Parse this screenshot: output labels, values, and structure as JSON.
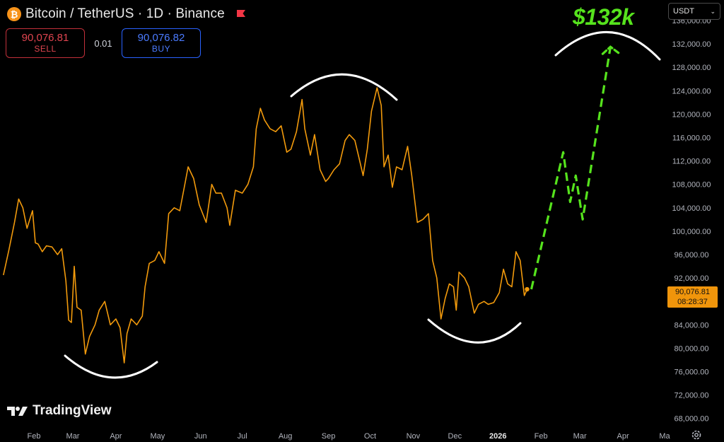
{
  "header": {
    "symbol_title": "Bitcoin / TetherUS · 1D · Binance",
    "icon": "bitcoin-icon",
    "flag_icon": "flag-icon",
    "flag_color": "#f23645"
  },
  "trade": {
    "sell_price": "90,076.81",
    "sell_label": "SELL",
    "spread": "0.01",
    "buy_price": "90,076.82",
    "buy_label": "BUY"
  },
  "currency": {
    "selected": "USDT"
  },
  "last_price": {
    "price": "90,076.81",
    "countdown": "08:28:37"
  },
  "annotation": {
    "target": "$132k"
  },
  "brand": {
    "name": "TradingView"
  },
  "colors": {
    "price_line": "#f29a0c",
    "projection": "#56e31d",
    "arcs": "#ffffff",
    "background": "#000000"
  },
  "chart_data": {
    "type": "line",
    "title": "Bitcoin / TetherUS · 1D · Binance",
    "xlabel": "",
    "ylabel": "",
    "ylim": [
      67000,
      139500
    ],
    "y_ticks": [
      68000,
      72000,
      76000,
      80000,
      84000,
      88000,
      92000,
      96000,
      100000,
      104000,
      108000,
      112000,
      116000,
      120000,
      124000,
      128000,
      132000,
      136000
    ],
    "y_tick_labels": [
      "68,000.00",
      "72,000.00",
      "76,000.00",
      "80,000.00",
      "84,000.00",
      "88,000.00",
      "92,000.00",
      "96,000.00",
      "100,000.00",
      "104,000.00",
      "108,000.00",
      "112,000.00",
      "116,000.00",
      "120,000.00",
      "124,000.00",
      "128,000.00",
      "132,000.00",
      "136,000.00"
    ],
    "x_tick_labels": [
      {
        "label": "Feb",
        "date": "2025-02-01"
      },
      {
        "label": "Mar",
        "date": "2025-03-01"
      },
      {
        "label": "Apr",
        "date": "2025-04-01"
      },
      {
        "label": "May",
        "date": "2025-05-01"
      },
      {
        "label": "Jun",
        "date": "2025-06-01"
      },
      {
        "label": "Jul",
        "date": "2025-07-01"
      },
      {
        "label": "Aug",
        "date": "2025-08-01"
      },
      {
        "label": "Sep",
        "date": "2025-09-01"
      },
      {
        "label": "Oct",
        "date": "2025-10-01"
      },
      {
        "label": "Nov",
        "date": "2025-11-01"
      },
      {
        "label": "Dec",
        "date": "2025-12-01"
      },
      {
        "label": "2026",
        "date": "2026-01-01"
      },
      {
        "label": "Feb",
        "date": "2026-02-01"
      },
      {
        "label": "Mar",
        "date": "2026-03-01"
      },
      {
        "label": "Apr",
        "date": "2026-04-01"
      },
      {
        "label": "Ma",
        "date": "2026-05-01"
      }
    ],
    "series": [
      {
        "points": [
          [
            "2025-01-10",
            92500
          ],
          [
            "2025-01-14",
            96800
          ],
          [
            "2025-01-18",
            101500
          ],
          [
            "2025-01-21",
            105500
          ],
          [
            "2025-01-24",
            104000
          ],
          [
            "2025-01-27",
            100500
          ],
          [
            "2025-01-31",
            103500
          ],
          [
            "2025-02-02",
            98000
          ],
          [
            "2025-02-04",
            97800
          ],
          [
            "2025-02-07",
            96500
          ],
          [
            "2025-02-10",
            97500
          ],
          [
            "2025-02-14",
            97300
          ],
          [
            "2025-02-18",
            96000
          ],
          [
            "2025-02-21",
            97000
          ],
          [
            "2025-02-24",
            91500
          ],
          [
            "2025-02-26",
            84800
          ],
          [
            "2025-02-28",
            84400
          ],
          [
            "2025-03-02",
            94000
          ],
          [
            "2025-03-04",
            87000
          ],
          [
            "2025-03-07",
            86500
          ],
          [
            "2025-03-10",
            79000
          ],
          [
            "2025-03-13",
            82000
          ],
          [
            "2025-03-17",
            84000
          ],
          [
            "2025-03-20",
            86500
          ],
          [
            "2025-03-24",
            88000
          ],
          [
            "2025-03-28",
            84000
          ],
          [
            "2025-04-01",
            85000
          ],
          [
            "2025-04-04",
            83500
          ],
          [
            "2025-04-07",
            77500
          ],
          [
            "2025-04-09",
            82500
          ],
          [
            "2025-04-12",
            85000
          ],
          [
            "2025-04-16",
            84000
          ],
          [
            "2025-04-20",
            85500
          ],
          [
            "2025-04-22",
            90500
          ],
          [
            "2025-04-25",
            94500
          ],
          [
            "2025-04-29",
            95000
          ],
          [
            "2025-05-02",
            96500
          ],
          [
            "2025-05-06",
            94500
          ],
          [
            "2025-05-09",
            103000
          ],
          [
            "2025-05-13",
            104000
          ],
          [
            "2025-05-17",
            103500
          ],
          [
            "2025-05-21",
            108500
          ],
          [
            "2025-05-23",
            111000
          ],
          [
            "2025-05-27",
            109000
          ],
          [
            "2025-05-31",
            104500
          ],
          [
            "2025-06-05",
            101500
          ],
          [
            "2025-06-09",
            108000
          ],
          [
            "2025-06-12",
            106500
          ],
          [
            "2025-06-16",
            106500
          ],
          [
            "2025-06-20",
            104000
          ],
          [
            "2025-06-22",
            101000
          ],
          [
            "2025-06-26",
            107000
          ],
          [
            "2025-07-01",
            106500
          ],
          [
            "2025-07-05",
            108000
          ],
          [
            "2025-07-09",
            111000
          ],
          [
            "2025-07-11",
            117500
          ],
          [
            "2025-07-14",
            121000
          ],
          [
            "2025-07-17",
            119000
          ],
          [
            "2025-07-21",
            117500
          ],
          [
            "2025-07-25",
            117000
          ],
          [
            "2025-07-29",
            118000
          ],
          [
            "2025-08-02",
            113500
          ],
          [
            "2025-08-05",
            114000
          ],
          [
            "2025-08-09",
            117000
          ],
          [
            "2025-08-13",
            122500
          ],
          [
            "2025-08-15",
            117500
          ],
          [
            "2025-08-19",
            113000
          ],
          [
            "2025-08-22",
            116500
          ],
          [
            "2025-08-26",
            110500
          ],
          [
            "2025-08-30",
            108500
          ],
          [
            "2025-09-01",
            109000
          ],
          [
            "2025-09-05",
            110500
          ],
          [
            "2025-09-09",
            111500
          ],
          [
            "2025-09-13",
            115500
          ],
          [
            "2025-09-16",
            116500
          ],
          [
            "2025-09-20",
            115500
          ],
          [
            "2025-09-23",
            112500
          ],
          [
            "2025-09-26",
            109500
          ],
          [
            "2025-09-29",
            114000
          ],
          [
            "2025-10-02",
            120500
          ],
          [
            "2025-10-06",
            124500
          ],
          [
            "2025-10-09",
            121500
          ],
          [
            "2025-10-11",
            111000
          ],
          [
            "2025-10-14",
            113000
          ],
          [
            "2025-10-17",
            107500
          ],
          [
            "2025-10-20",
            111000
          ],
          [
            "2025-10-24",
            110500
          ],
          [
            "2025-10-28",
            114500
          ],
          [
            "2025-10-31",
            109500
          ],
          [
            "2025-11-04",
            101500
          ],
          [
            "2025-11-08",
            102000
          ],
          [
            "2025-11-12",
            103000
          ],
          [
            "2025-11-15",
            95000
          ],
          [
            "2025-11-18",
            92000
          ],
          [
            "2025-11-21",
            85000
          ],
          [
            "2025-11-24",
            88500
          ],
          [
            "2025-11-27",
            91000
          ],
          [
            "2025-11-30",
            90500
          ],
          [
            "2025-12-02",
            86500
          ],
          [
            "2025-12-04",
            93000
          ],
          [
            "2025-12-08",
            92000
          ],
          [
            "2025-12-11",
            90500
          ],
          [
            "2025-12-15",
            86000
          ],
          [
            "2025-12-18",
            87500
          ],
          [
            "2025-12-22",
            88000
          ],
          [
            "2025-12-25",
            87500
          ],
          [
            "2025-12-29",
            87800
          ],
          [
            "2026-01-02",
            89500
          ],
          [
            "2026-01-05",
            93500
          ],
          [
            "2026-01-08",
            91000
          ],
          [
            "2026-01-11",
            90500
          ],
          [
            "2026-01-14",
            96500
          ],
          [
            "2026-01-17",
            95000
          ],
          [
            "2026-01-20",
            89000
          ],
          [
            "2026-01-22",
            90077
          ]
        ]
      }
    ],
    "projection": [
      [
        "2026-01-22",
        90077
      ],
      [
        "2026-02-17",
        113500
      ],
      [
        "2026-02-22",
        105000
      ],
      [
        "2026-02-26",
        109500
      ],
      [
        "2026-03-03",
        102000
      ],
      [
        "2026-03-23",
        131500
      ]
    ],
    "arc_annotations": 4
  }
}
